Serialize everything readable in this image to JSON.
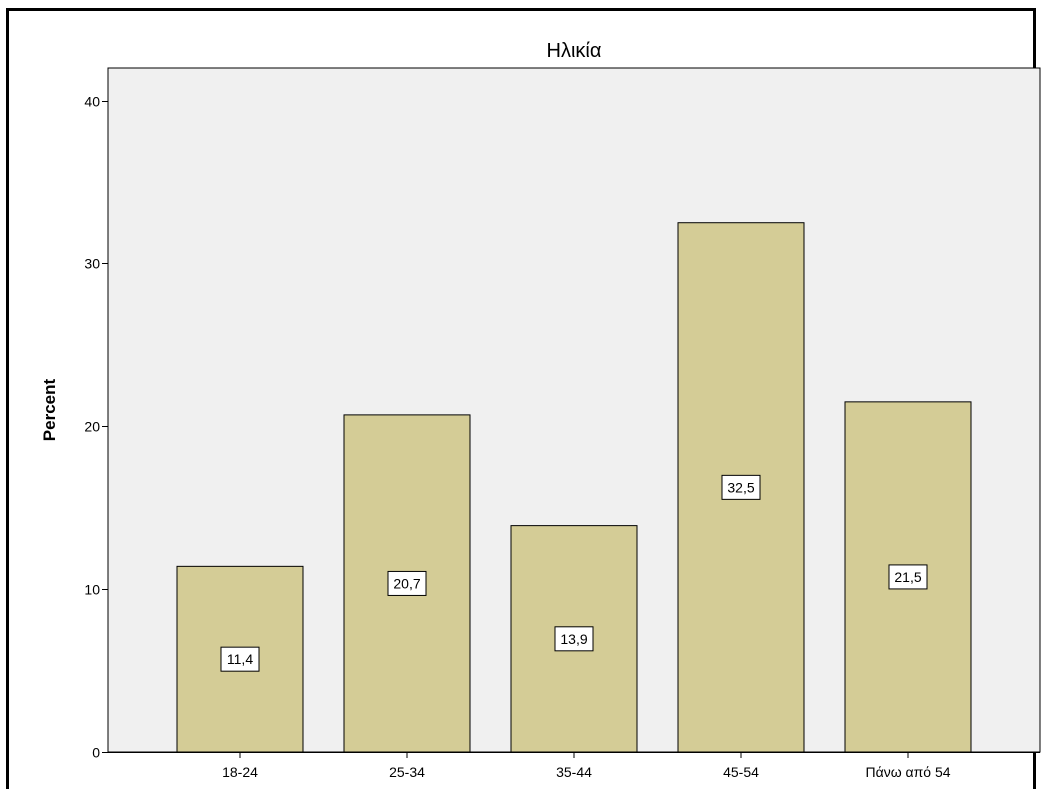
{
  "chart_data": {
    "type": "bar",
    "title": "Ηλικία",
    "xlabel": "",
    "ylabel": "Percent",
    "categories": [
      "18-24",
      "25-34",
      "35-44",
      "45-54",
      "Πάνω από 54"
    ],
    "values": [
      11.4,
      20.7,
      13.9,
      32.5,
      21.5
    ],
    "value_labels": [
      "11,4",
      "20,7",
      "13,9",
      "32,5",
      "21,5"
    ],
    "ylim": [
      0,
      42
    ],
    "yticks": [
      0,
      10,
      20,
      30,
      40
    ],
    "grid": false,
    "legend": "none",
    "colors": {
      "bar_fill": "#d4cc96",
      "bar_stroke": "#000000",
      "plot_background": "#f0f0f0",
      "label_box": "#ffffff"
    }
  }
}
